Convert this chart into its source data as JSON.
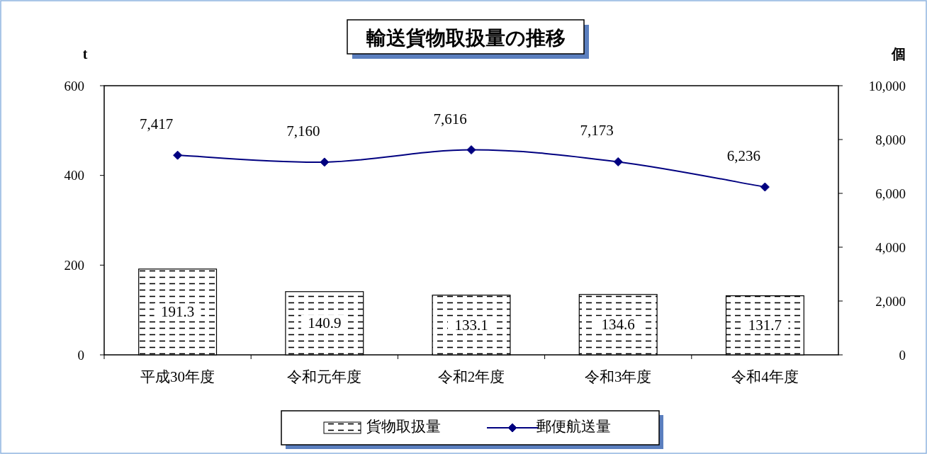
{
  "chart_data": {
    "type": "bar",
    "title": "輸送貨物取扱量の推移",
    "ylabel": "t",
    "y2label": "個",
    "categories": [
      "平成30年度",
      "令和元年度",
      "令和2年度",
      "令和3年度",
      "令和4年度"
    ],
    "series": [
      {
        "name": "貨物取扱量",
        "color": "#000000",
        "values": [
          191.3,
          140.9,
          133.1,
          134.6,
          131.7
        ],
        "data_labels": true
      },
      {
        "name": "郵便航送量",
        "type": "line",
        "axis": "y2",
        "color": "#000080",
        "marker": "diamond",
        "values": [
          7417,
          7160,
          7616,
          7173,
          6236
        ],
        "value_labels": [
          "7,417",
          "7,160",
          "7,616",
          "7,173",
          "6,236"
        ]
      }
    ],
    "ylim": [
      0,
      600
    ],
    "yticks": [
      0,
      200,
      400,
      600
    ],
    "y2lim": [
      0,
      10000
    ],
    "y2ticks": [
      0,
      {
        "value": 2000,
        "label": "2,000"
      },
      {
        "value": 4000,
        "label": "4,000"
      },
      {
        "value": 6000,
        "label": "6,000"
      },
      {
        "value": 8000,
        "label": "8,000"
      },
      {
        "value": 10000,
        "label": "10,000"
      }
    ],
    "grid": false,
    "legend": "bottom"
  }
}
